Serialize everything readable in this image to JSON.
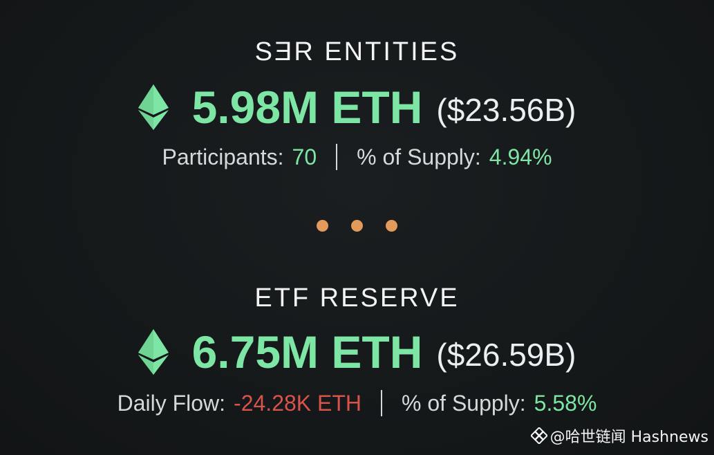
{
  "sections": [
    {
      "title": "SƎR ENTITIES",
      "eth_amount": "5.98M ETH",
      "usd_value": "($23.56B)",
      "stat1_label": "Participants:",
      "stat1_value": "70",
      "stat2_label": "% of Supply:",
      "stat2_value": "4.94%"
    },
    {
      "title": "ETF RESERVE",
      "eth_amount": "6.75M ETH",
      "usd_value": "($26.59B)",
      "stat1_label": "Daily Flow:",
      "stat1_value": "-24.28K ETH",
      "stat2_label": "% of Supply:",
      "stat2_value": "5.58%"
    }
  ],
  "colors": {
    "background": "#16191b",
    "eth_green": "#7ee6a4",
    "negative_red": "#d9534a",
    "dot_orange": "#e39a5a",
    "text_light": "#f0f2f3"
  },
  "icons": {
    "eth": "ethereum-diamond-icon",
    "watermark": "binance-square-logo-icon"
  },
  "watermark": {
    "text": "@哈世链闻 Hashnews"
  }
}
